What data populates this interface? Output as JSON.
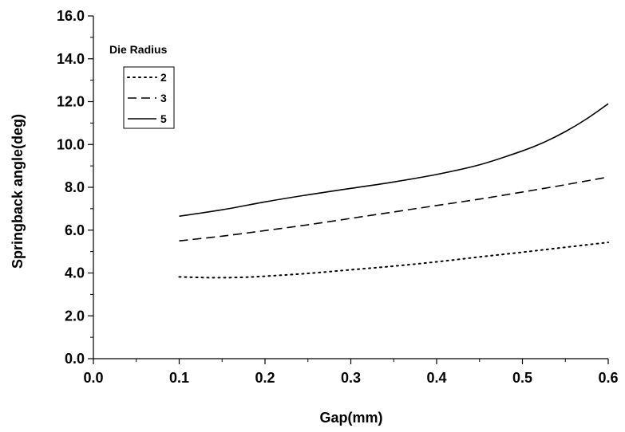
{
  "chart_data": {
    "type": "line",
    "title": "",
    "xlabel": "Gap(mm)",
    "ylabel": "Springback angle(deg)",
    "xlim": [
      0.0,
      0.6
    ],
    "ylim": [
      0.0,
      16.0
    ],
    "x_ticks": [
      "0.0",
      "0.1",
      "0.2",
      "0.3",
      "0.4",
      "0.5",
      "0.6"
    ],
    "y_ticks": [
      "0.0",
      "2.0",
      "4.0",
      "6.0",
      "8.0",
      "10.0",
      "12.0",
      "14.0",
      "16.0"
    ],
    "grid": false,
    "legend": {
      "title": "Die Radius",
      "placement": "top-left"
    },
    "series": [
      {
        "name": "2",
        "line_style": "dotted",
        "x": [
          0.1,
          0.125,
          0.15,
          0.175,
          0.2,
          0.25,
          0.3,
          0.35,
          0.4,
          0.45,
          0.5,
          0.55,
          0.6
        ],
        "y": [
          3.82,
          3.79,
          3.78,
          3.8,
          3.85,
          3.98,
          4.15,
          4.32,
          4.52,
          4.75,
          4.97,
          5.2,
          5.43
        ]
      },
      {
        "name": "3",
        "line_style": "dashed",
        "x": [
          0.1,
          0.15,
          0.2,
          0.25,
          0.3,
          0.35,
          0.4,
          0.45,
          0.5,
          0.55,
          0.6
        ],
        "y": [
          5.5,
          5.72,
          5.98,
          6.25,
          6.55,
          6.85,
          7.15,
          7.45,
          7.78,
          8.12,
          8.48
        ]
      },
      {
        "name": "5",
        "line_style": "solid",
        "x": [
          0.1,
          0.15,
          0.2,
          0.25,
          0.3,
          0.35,
          0.4,
          0.45,
          0.5,
          0.525,
          0.55,
          0.575,
          0.6
        ],
        "y": [
          6.65,
          6.95,
          7.32,
          7.65,
          7.95,
          8.25,
          8.6,
          9.05,
          9.7,
          10.1,
          10.6,
          11.2,
          11.9
        ]
      }
    ]
  }
}
